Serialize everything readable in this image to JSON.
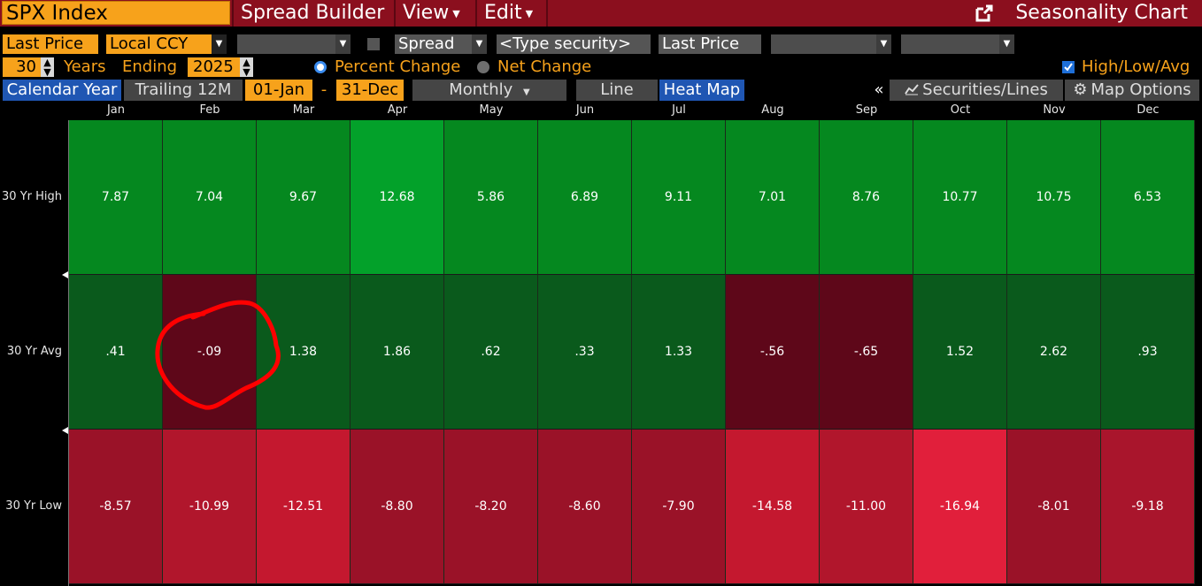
{
  "toolbar": {
    "security": "SPX Index",
    "spread_builder": "Spread Builder",
    "view": "View",
    "edit": "Edit",
    "chart_title": "Seasonality Chart"
  },
  "controls": {
    "field1": "Last Price",
    "currency": "Local CCY",
    "spread_label": "Spread",
    "type_security_placeholder": "<Type security>",
    "field2": "Last Price",
    "years_value": "30",
    "years_label": "Years",
    "ending_label": "Ending",
    "ending_value": "2025",
    "percent_change": "Percent Change",
    "net_change": "Net Change",
    "high_low_avg": "High/Low/Avg"
  },
  "tabs": {
    "calendar_year": "Calendar Year",
    "trailing_12m": "Trailing 12M",
    "start_date": "01-Jan",
    "dash": "-",
    "end_date": "31-Dec",
    "periodicity": "Monthly",
    "line": "Line",
    "heat_map": "Heat Map",
    "collapse": "«",
    "securities_lines": "Securities/Lines",
    "map_options": "Map Options"
  },
  "colors": {
    "high_green_bright": "#03a12a",
    "high_green": "#05881f",
    "avg_green": "#0a5a1c",
    "avg_red": "#5e0719",
    "low_red": "#a5142b",
    "low_red_bright": "#e11f3b",
    "annotation": "#ff0000"
  },
  "heatmap": {
    "months": [
      "Jan",
      "Feb",
      "Mar",
      "Apr",
      "May",
      "Jun",
      "Jul",
      "Aug",
      "Sep",
      "Oct",
      "Nov",
      "Dec"
    ],
    "rows": [
      {
        "label": "30 Yr High",
        "values": [
          "7.87",
          "7.04",
          "9.67",
          "12.68",
          "5.86",
          "6.89",
          "9.11",
          "7.01",
          "8.76",
          "10.77",
          "10.75",
          "6.53"
        ]
      },
      {
        "label": "30 Yr Avg",
        "values": [
          ".41",
          "-.09",
          "1.38",
          "1.86",
          ".62",
          ".33",
          "1.33",
          "-.56",
          "-.65",
          "1.52",
          "2.62",
          ".93"
        ]
      },
      {
        "label": "30 Yr Low",
        "values": [
          "-8.57",
          "-10.99",
          "-12.51",
          "-8.80",
          "-8.20",
          "-8.60",
          "-7.90",
          "-14.58",
          "-11.00",
          "-16.94",
          "-8.01",
          "-9.18"
        ]
      }
    ]
  }
}
